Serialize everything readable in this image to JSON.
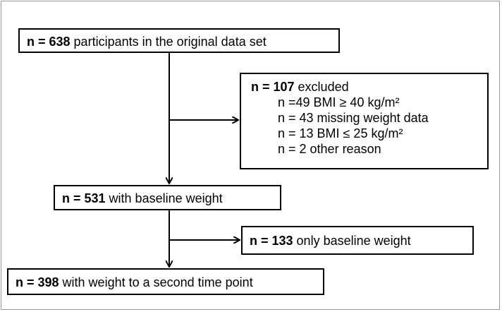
{
  "flow": {
    "start": {
      "count": "n = 638",
      "text": " participants in the original data set"
    },
    "excluded": {
      "count": "n = 107",
      "text": " excluded",
      "reasons": [
        "n =49 BMI ≥ 40 kg/m²",
        "n = 43 missing weight data",
        "n = 13 BMI ≤ 25 kg/m²",
        "n = 2 other reason"
      ]
    },
    "baseline": {
      "count": "n = 531",
      "text": " with baseline weight"
    },
    "only_baseline": {
      "count": "n = 133",
      "text": " only baseline weight"
    },
    "second": {
      "count": "n = 398",
      "text": " with weight to a second time point"
    }
  },
  "colors": {
    "line": "#000000",
    "frame": "#9a9a9a"
  }
}
